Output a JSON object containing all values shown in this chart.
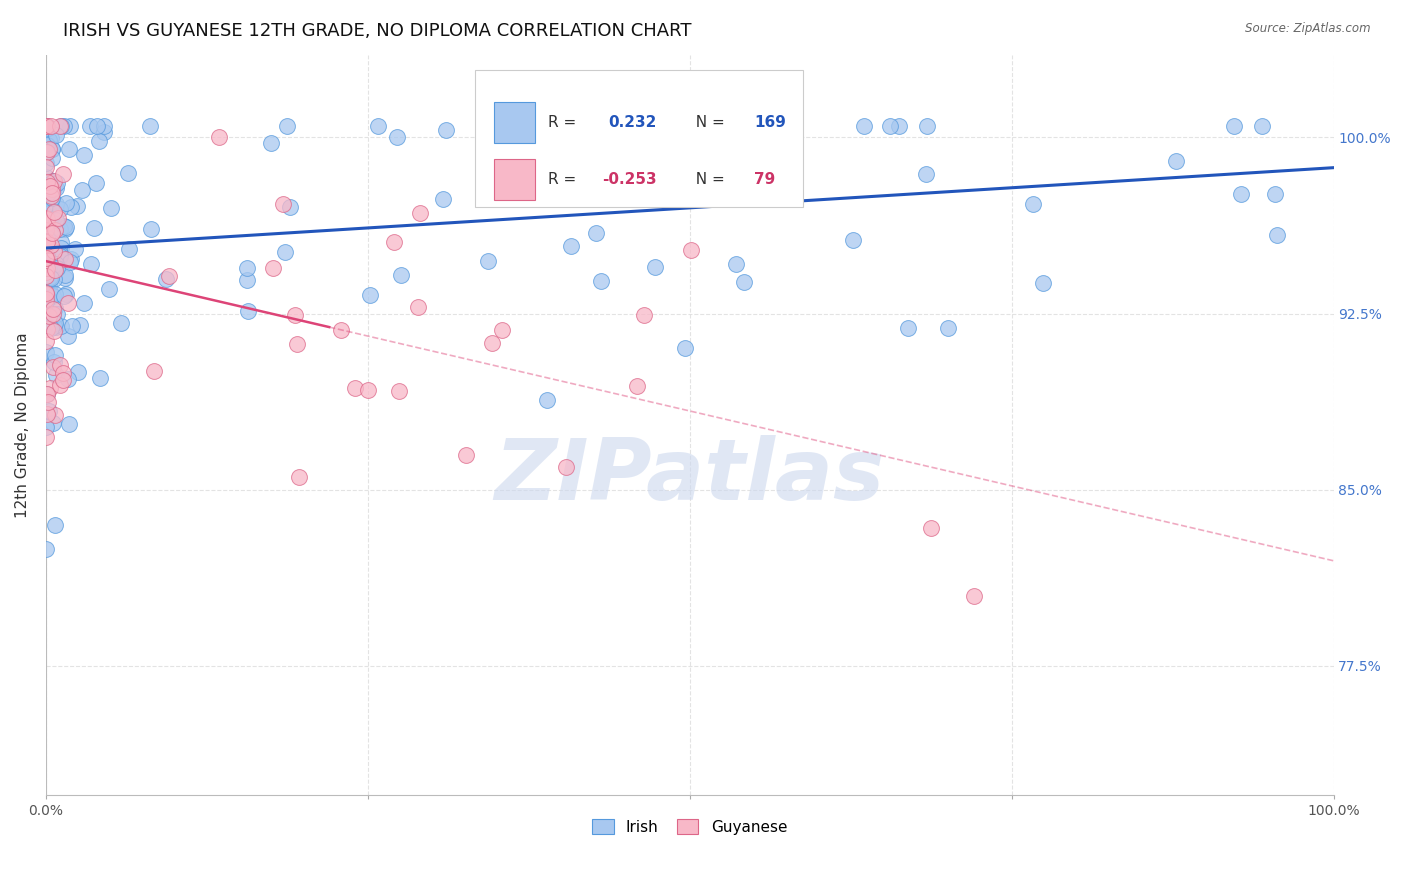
{
  "title": "IRISH VS GUYANESE 12TH GRADE, NO DIPLOMA CORRELATION CHART",
  "source": "Source: ZipAtlas.com",
  "ylabel": "12th Grade, No Diploma",
  "xlim": [
    0.0,
    1.0
  ],
  "ylim": [
    0.72,
    1.035
  ],
  "yticks": [
    0.775,
    0.85,
    0.925,
    1.0
  ],
  "ytick_labels": [
    "77.5%",
    "85.0%",
    "92.5%",
    "100.0%"
  ],
  "irish_R": 0.232,
  "irish_N": 169,
  "guyanese_R": -0.253,
  "guyanese_N": 79,
  "irish_color": "#a8c8f0",
  "irish_edge_color": "#5599dd",
  "guyanese_color": "#f8b8c8",
  "guyanese_edge_color": "#dd6688",
  "irish_line_color": "#2255bb",
  "guyanese_line_color": "#dd4477",
  "watermark_color": "#ccd8ee",
  "grid_color": "#dddddd",
  "title_fontsize": 13,
  "tick_fontsize": 10,
  "label_fontsize": 11
}
